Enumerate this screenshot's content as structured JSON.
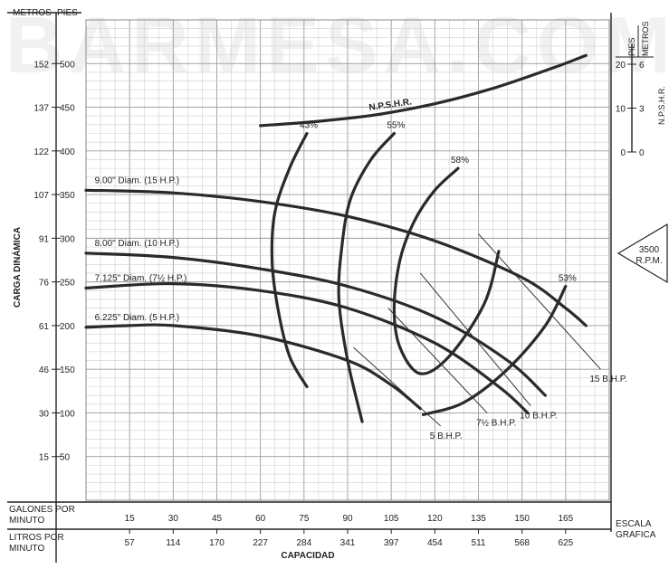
{
  "watermark": "BARMESA.COM",
  "chart_data": {
    "type": "line",
    "axes": {
      "left_top_label": "METROS",
      "left_top_label2": "PIES",
      "ylabel": "CARGA DINÁMICA",
      "xlabel": "CAPACIDAD",
      "gpm_label_line1": "GALONES POR",
      "gpm_label_line2": "MINUTO",
      "lpm_label_line1": "LITROS POR",
      "lpm_label_line2": "MINUTO",
      "escala_line1": "ESCALA",
      "escala_line2": "GRAFICA",
      "xlim_gpm": [
        0,
        180
      ],
      "ylim_ft": [
        0,
        550
      ],
      "ft_ticks": [
        {
          "ft": "50",
          "m": "15"
        },
        {
          "ft": "100",
          "m": "30"
        },
        {
          "ft": "150",
          "m": "46"
        },
        {
          "ft": "200",
          "m": "61"
        },
        {
          "ft": "250",
          "m": "76"
        },
        {
          "ft": "300",
          "m": "91"
        },
        {
          "ft": "350",
          "m": "107"
        },
        {
          "ft": "400",
          "m": "122"
        },
        {
          "ft": "450",
          "m": "137"
        },
        {
          "ft": "500",
          "m": "152"
        }
      ],
      "gpm_ticks": [
        "15",
        "30",
        "45",
        "60",
        "75",
        "90",
        "105",
        "120",
        "135",
        "150",
        "165"
      ],
      "lpm_ticks": [
        "57",
        "114",
        "170",
        "227",
        "284",
        "341",
        "397",
        "454",
        "511",
        "568",
        "625"
      ],
      "grid": true
    },
    "npshr_axis": {
      "title": "N.P.S.H.R.",
      "pies_label": "PIES",
      "metros_label": "METROS",
      "ticks": [
        {
          "pies": "20",
          "metros": "6"
        },
        {
          "pies": "10",
          "metros": "3"
        },
        {
          "pies": "0",
          "metros": "0"
        }
      ]
    },
    "speed_label_line1": "3500",
    "speed_label_line2": "R.P.M.",
    "series": [
      {
        "name": "9.00\" Diam. (15 H.P.)",
        "x": [
          0,
          30,
          60,
          90,
          120,
          150,
          165,
          172
        ],
        "y": [
          355,
          352,
          342,
          325,
          297,
          255,
          220,
          200
        ]
      },
      {
        "name": "8.00\" Diam. (10 H.P.)",
        "x": [
          0,
          30,
          60,
          90,
          120,
          145,
          158
        ],
        "y": [
          283,
          278,
          265,
          245,
          210,
          160,
          120
        ]
      },
      {
        "name": "7.125\" Diam. (7½ H.P.)",
        "x": [
          0,
          30,
          60,
          90,
          120,
          142,
          152
        ],
        "y": [
          243,
          248,
          240,
          220,
          180,
          130,
          100
        ]
      },
      {
        "name": "6.225\" Diam. (5 H.P.)",
        "x": [
          0,
          15,
          30,
          60,
          90,
          105,
          115
        ],
        "y": [
          198,
          200,
          200,
          188,
          160,
          132,
          105
        ]
      }
    ],
    "npshr_curve": {
      "name": "N.P.S.H.R.",
      "x": [
        60,
        80,
        100,
        120,
        140,
        160,
        172
      ],
      "y_pies": [
        6,
        7,
        8.5,
        11,
        14.5,
        19,
        22
      ]
    },
    "efficiency_curves": [
      {
        "name": "43%",
        "x": [
          76,
          70,
          65,
          64,
          66,
          70,
          76
        ],
        "y": [
          420,
          380,
          330,
          275,
          220,
          165,
          130
        ]
      },
      {
        "name": "55%",
        "x": [
          106,
          98,
          91,
          88,
          87,
          90,
          95
        ],
        "y": [
          420,
          390,
          345,
          290,
          230,
          160,
          90
        ]
      },
      {
        "name": "58%",
        "x": [
          128,
          120,
          113,
          108,
          106,
          108,
          115,
          125,
          137,
          142
        ],
        "y": [
          380,
          355,
          320,
          275,
          220,
          175,
          145,
          165,
          225,
          285
        ]
      },
      {
        "name": "53%",
        "x": [
          116,
          130,
          145,
          158,
          165
        ],
        "y": [
          98,
          112,
          150,
          200,
          245
        ]
      }
    ],
    "bhp_lines": [
      {
        "name": "5 B.H.P.",
        "x": [
          92,
          122
        ],
        "y": [
          175,
          85
        ]
      },
      {
        "name": "7½ B.H.P.",
        "x": [
          104,
          138
        ],
        "y": [
          220,
          100
        ]
      },
      {
        "name": "10 B.H.P.",
        "x": [
          115,
          153
        ],
        "y": [
          260,
          108
        ]
      },
      {
        "name": "15 B.H.P.",
        "x": [
          135,
          177
        ],
        "y": [
          305,
          150
        ]
      }
    ]
  }
}
